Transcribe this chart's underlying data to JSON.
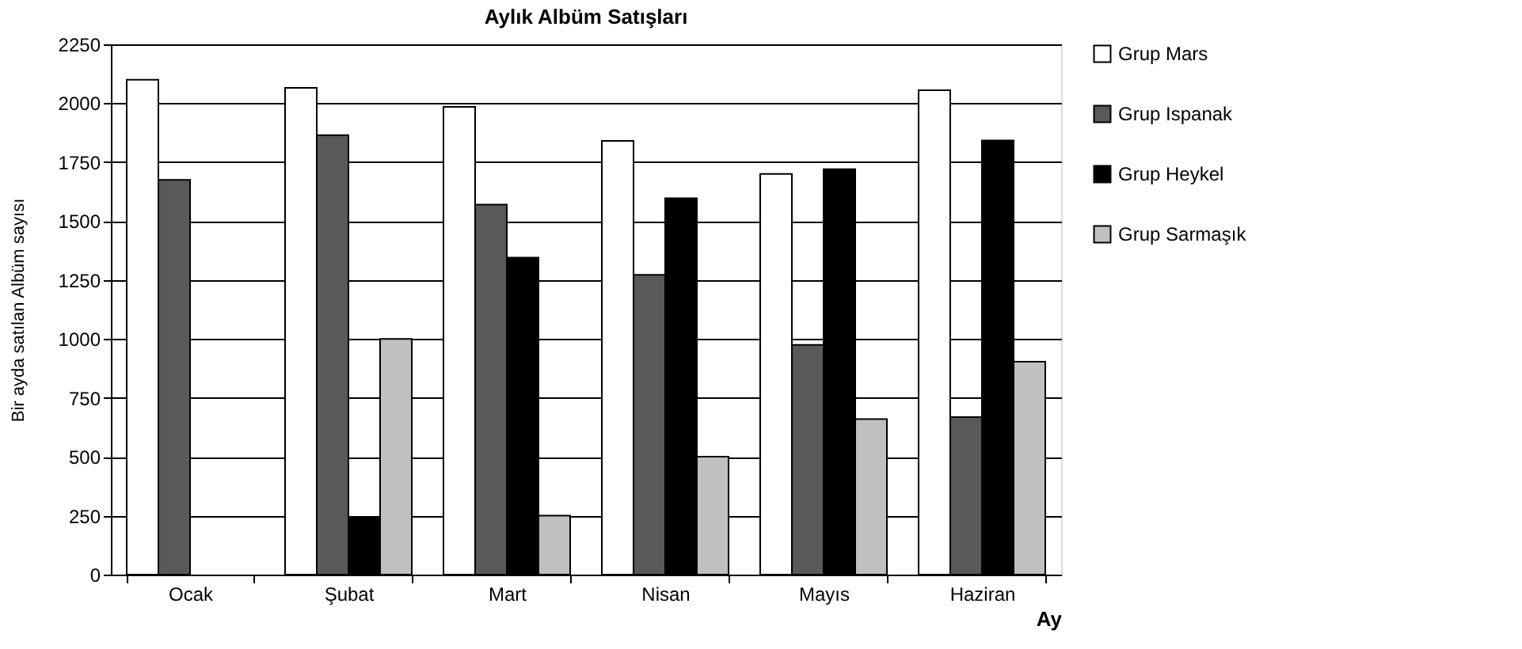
{
  "chart_data": {
    "type": "bar",
    "title": "Aylık Albüm Satışları",
    "xlabel": "Ay",
    "ylabel": "Bir ayda satılan Albüm sayısı",
    "categories": [
      "Ocak",
      "Şubat",
      "Mart",
      "Nisan",
      "Mayıs",
      "Haziran"
    ],
    "series": [
      {
        "name": "Grup Mars",
        "color": "#ffffff",
        "values": [
          2100,
          2065,
          1985,
          1840,
          1700,
          2055
        ]
      },
      {
        "name": "Grup Ispanak",
        "color": "#595959",
        "values": [
          1675,
          1865,
          1570,
          1272,
          975,
          668
        ]
      },
      {
        "name": "Grup Heykel",
        "color": "#000000",
        "values": [
          null,
          240,
          1345,
          1597,
          1720,
          1842
        ]
      },
      {
        "name": "Grup Sarmaşık",
        "color": "#c0c0c0",
        "values": [
          null,
          1000,
          250,
          500,
          660,
          903
        ]
      }
    ],
    "ylim": [
      0,
      2250
    ],
    "yticks": [
      0,
      250,
      500,
      750,
      1000,
      1250,
      1500,
      1750,
      2000,
      2250
    ],
    "grid": "y",
    "legend": "right"
  }
}
